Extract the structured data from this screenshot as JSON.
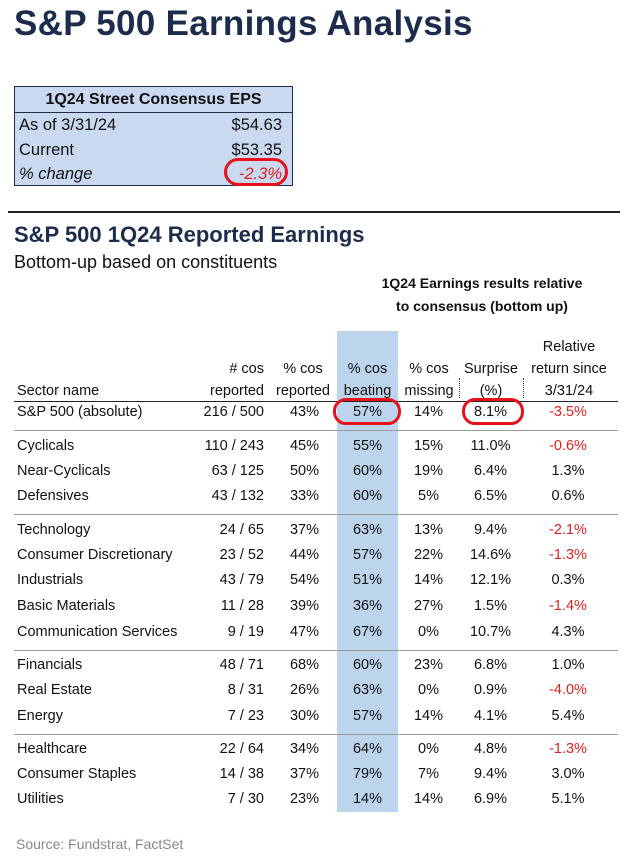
{
  "title": "S&P 500 Earnings Analysis",
  "eps_box": {
    "header": "1Q24 Street Consensus EPS",
    "rows": [
      {
        "label": "As of 3/31/24",
        "value": "$54.63"
      },
      {
        "label": "Current",
        "value": "$53.35"
      },
      {
        "label": "% change",
        "value": "-2.3%"
      }
    ]
  },
  "section": {
    "title": "S&P 500 1Q24 Reported Earnings",
    "subtitle": "Bottom-up based on constituents",
    "results_header_line1": "1Q24 Earnings results relative",
    "results_header_line2": "to consensus (bottom up)"
  },
  "columns": {
    "sector": "Sector name",
    "reported": [
      "# cos",
      "reported"
    ],
    "pct_reported": [
      "% cos",
      "reported"
    ],
    "beating": [
      "% cos",
      "beating"
    ],
    "missing": [
      "% cos",
      "missing"
    ],
    "surprise": [
      "Surprise",
      "(%)"
    ],
    "relative": [
      "Relative",
      "return since",
      "3/31/24"
    ]
  },
  "rows": [
    {
      "name": "S&P 500 (absolute)",
      "reported": "216 / 500",
      "pct": "43%",
      "beating": "57%",
      "missing": "14%",
      "surprise": "8.1%",
      "relative": "-3.5%"
    },
    {
      "name": "Cyclicals",
      "reported": "110 / 243",
      "pct": "45%",
      "beating": "55%",
      "missing": "15%",
      "surprise": "11.0%",
      "relative": "-0.6%"
    },
    {
      "name": "Near-Cyclicals",
      "reported": "63 / 125",
      "pct": "50%",
      "beating": "60%",
      "missing": "19%",
      "surprise": "6.4%",
      "relative": "1.3%"
    },
    {
      "name": "Defensives",
      "reported": "43 / 132",
      "pct": "33%",
      "beating": "60%",
      "missing": "5%",
      "surprise": "6.5%",
      "relative": "0.6%"
    },
    {
      "name": "Technology",
      "reported": "24 / 65",
      "pct": "37%",
      "beating": "63%",
      "missing": "13%",
      "surprise": "9.4%",
      "relative": "-2.1%"
    },
    {
      "name": "Consumer Discretionary",
      "reported": "23 / 52",
      "pct": "44%",
      "beating": "57%",
      "missing": "22%",
      "surprise": "14.6%",
      "relative": "-1.3%"
    },
    {
      "name": "Industrials",
      "reported": "43 / 79",
      "pct": "54%",
      "beating": "51%",
      "missing": "14%",
      "surprise": "12.1%",
      "relative": "0.3%"
    },
    {
      "name": "Basic Materials",
      "reported": "11 / 28",
      "pct": "39%",
      "beating": "36%",
      "missing": "27%",
      "surprise": "1.5%",
      "relative": "-1.4%"
    },
    {
      "name": "Communication Services",
      "reported": "9 / 19",
      "pct": "47%",
      "beating": "67%",
      "missing": "0%",
      "surprise": "10.7%",
      "relative": "4.3%"
    },
    {
      "name": "Financials",
      "reported": "48 / 71",
      "pct": "68%",
      "beating": "60%",
      "missing": "23%",
      "surprise": "6.8%",
      "relative": "1.0%"
    },
    {
      "name": "Real Estate",
      "reported": "8 / 31",
      "pct": "26%",
      "beating": "63%",
      "missing": "0%",
      "surprise": "0.9%",
      "relative": "-4.0%"
    },
    {
      "name": "Energy",
      "reported": "7 / 23",
      "pct": "30%",
      "beating": "57%",
      "missing": "14%",
      "surprise": "4.1%",
      "relative": "5.4%"
    },
    {
      "name": "Healthcare",
      "reported": "22 / 64",
      "pct": "34%",
      "beating": "64%",
      "missing": "0%",
      "surprise": "4.8%",
      "relative": "-1.3%"
    },
    {
      "name": "Consumer Staples",
      "reported": "14 / 38",
      "pct": "37%",
      "beating": "79%",
      "missing": "7%",
      "surprise": "9.4%",
      "relative": "3.0%"
    },
    {
      "name": "Utilities",
      "reported": "7 / 30",
      "pct": "23%",
      "beating": "14%",
      "missing": "14%",
      "surprise": "6.9%",
      "relative": "5.1%"
    }
  ],
  "colors": {
    "title": "#1c2c4c",
    "eps_box_bg": "#c9daf0",
    "highlight_column": "#bcd4ec",
    "negative": "#e02020",
    "annotation_circle": "#e8101a"
  },
  "source": "Source: Fundstrat, FactSet"
}
